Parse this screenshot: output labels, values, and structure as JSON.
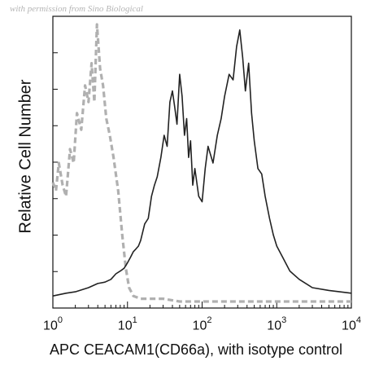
{
  "watermark": "with permission from Sino Biological",
  "chart_data": {
    "type": "line",
    "xlabel": "APC CEACAM1(CD66a), with isotype control",
    "ylabel": "Relative Cell Number",
    "xscale": "log",
    "xlim": [
      1,
      10000
    ],
    "ylim": [
      0,
      100
    ],
    "xticks": [
      {
        "base": "10",
        "exp": "0",
        "value": 1
      },
      {
        "base": "10",
        "exp": "1",
        "value": 10
      },
      {
        "base": "10",
        "exp": "2",
        "value": 100
      },
      {
        "base": "10",
        "exp": "3",
        "value": 1000
      },
      {
        "base": "10",
        "exp": "4",
        "value": 10000
      }
    ],
    "series": [
      {
        "role": "isotype control",
        "color": "#b0b0b0",
        "dashed": true,
        "x": [
          1.0,
          1.1,
          1.2,
          1.35,
          1.5,
          1.7,
          1.9,
          2.1,
          2.4,
          2.7,
          3.0,
          3.3,
          3.6,
          3.9,
          4.3,
          4.7,
          5.2,
          5.8,
          6.5,
          7.5,
          8.5,
          9.5,
          10.5,
          12,
          15,
          20,
          30,
          50,
          100,
          1000,
          10000
        ],
        "y": [
          43,
          40,
          50,
          42,
          38,
          55,
          50,
          68,
          62,
          78,
          72,
          86,
          72,
          100,
          84,
          78,
          66,
          60,
          52,
          40,
          24,
          12,
          5,
          2,
          1,
          1,
          1,
          0,
          0,
          0,
          0
        ]
      },
      {
        "role": "CEACAM1 (CD66a)",
        "color": "#222222",
        "dashed": false,
        "x": [
          1.0,
          1.5,
          2,
          3,
          4,
          5,
          6,
          7,
          8,
          9,
          10,
          11,
          12,
          13,
          14,
          15,
          17,
          19,
          21,
          23,
          25,
          28,
          31,
          34,
          37,
          40,
          43,
          46,
          50,
          54,
          58,
          62,
          66,
          70,
          75,
          80,
          90,
          100,
          110,
          120,
          140,
          160,
          180,
          200,
          230,
          260,
          290,
          320,
          350,
          380,
          420,
          460,
          500,
          560,
          630,
          700,
          800,
          900,
          1000,
          1200,
          1500,
          2000,
          3000,
          5000,
          10000
        ],
        "y": [
          2,
          3,
          3.5,
          5,
          6.5,
          7,
          8,
          10,
          11,
          12,
          14,
          16,
          18,
          19,
          20,
          22,
          28,
          30,
          38,
          42,
          45,
          52,
          60,
          56,
          72,
          76,
          70,
          64,
          82,
          74,
          60,
          66,
          52,
          58,
          42,
          48,
          38,
          36,
          48,
          56,
          50,
          60,
          66,
          74,
          82,
          80,
          92,
          98,
          88,
          76,
          86,
          68,
          58,
          48,
          46,
          38,
          30,
          24,
          20,
          16,
          11,
          8,
          5,
          4,
          3
        ]
      }
    ]
  }
}
